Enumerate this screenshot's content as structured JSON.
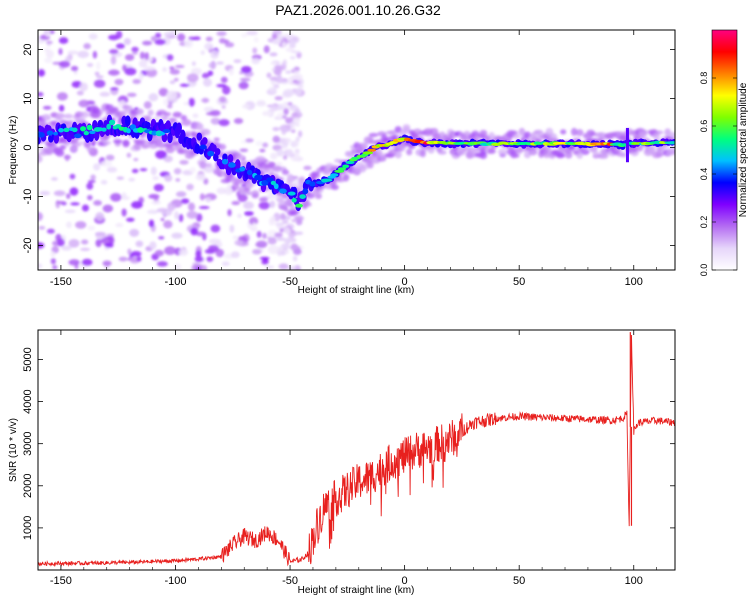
{
  "figure_title": "PAZ1.2026.001.10.26.G32",
  "chart_data": [
    {
      "type": "heatmap",
      "title": "PAZ1.2026.001.10.26.G32",
      "xlabel": "Height of straight line (km)",
      "ylabel": "Frequency (Hz)",
      "xlim": [
        -160,
        118
      ],
      "ylim": [
        -25,
        24
      ],
      "x_ticks": [
        -150,
        -100,
        -50,
        0,
        50,
        100
      ],
      "y_ticks": [
        -20,
        -10,
        0,
        10,
        20
      ],
      "colorbar": {
        "label": "Normalized spectral amplitude",
        "range": [
          0,
          1
        ],
        "ticks": [
          "0.0",
          "0.2",
          "0.4",
          "0.6",
          "0.8"
        ],
        "tick_values": [
          0,
          0.2,
          0.4,
          0.6,
          0.8
        ],
        "stops": [
          "#ffffff",
          "#e6d5fa",
          "#b46cf2",
          "#7f00ff",
          "#0000ff",
          "#00c0ff",
          "#00ff7f",
          "#7fff00",
          "#ffff00",
          "#ff8000",
          "#ff0000",
          "#ff0080"
        ]
      },
      "ridge": {
        "x": [
          -160,
          -150,
          -140,
          -130,
          -120,
          -110,
          -100,
          -90,
          -80,
          -70,
          -60,
          -50,
          -46,
          -42,
          -38,
          -33,
          -28,
          -22,
          -16,
          -12,
          -8,
          -4,
          0,
          4,
          8,
          12,
          20,
          30,
          50,
          70,
          90,
          96,
          98,
          100,
          118
        ],
        "freq": [
          2.5,
          2.8,
          3.2,
          4.5,
          4.2,
          3.6,
          3.0,
          1.0,
          -2.5,
          -5.0,
          -7.0,
          -9.0,
          -11.5,
          -7.5,
          -7.2,
          -6.5,
          -4.5,
          -2.5,
          -1.0,
          0.3,
          0.5,
          1.2,
          1.8,
          1.2,
          1.0,
          1.0,
          0.8,
          0.8,
          0.8,
          0.8,
          0.7,
          0.5,
          1.2,
          0.8,
          1.0
        ],
        "amplitude": [
          0.45,
          0.45,
          0.5,
          0.55,
          0.55,
          0.5,
          0.4,
          0.35,
          0.4,
          0.45,
          0.45,
          0.45,
          0.55,
          0.4,
          0.4,
          0.5,
          0.55,
          0.6,
          0.75,
          0.85,
          0.8,
          0.75,
          0.85,
          0.9,
          0.85,
          0.9,
          0.7,
          0.65,
          0.65,
          0.7,
          0.8,
          0.5,
          0.4,
          0.6,
          0.65
        ]
      }
    },
    {
      "type": "line",
      "xlabel": "Height of straight line (km)",
      "ylabel": "SNR (10 * v/v)",
      "xlim": [
        -160,
        118
      ],
      "ylim": [
        0,
        5700
      ],
      "x_ticks": [
        -150,
        -100,
        -50,
        0,
        50,
        100
      ],
      "y_ticks": [
        1000,
        2000,
        3000,
        4000,
        5000
      ],
      "series": [
        {
          "name": "SNR",
          "color": "#e8201e",
          "x": [
            -160,
            -140,
            -120,
            -100,
            -90,
            -80,
            -75,
            -70,
            -65,
            -60,
            -55,
            -50,
            -45,
            -42,
            -38,
            -35,
            -30,
            -25,
            -20,
            -15,
            -10,
            -5,
            0,
            5,
            10,
            15,
            20,
            25,
            30,
            40,
            50,
            60,
            70,
            80,
            90,
            95,
            97,
            98,
            99,
            100,
            102,
            110,
            118
          ],
          "values": [
            150,
            160,
            180,
            220,
            260,
            320,
            600,
            800,
            700,
            900,
            700,
            200,
            250,
            400,
            1100,
            1500,
            1700,
            1900,
            2100,
            2200,
            2400,
            2600,
            2700,
            2850,
            2900,
            3000,
            3100,
            3300,
            3500,
            3600,
            3650,
            3620,
            3600,
            3580,
            3550,
            3600,
            3700,
            1000,
            5600,
            3300,
            3500,
            3550,
            3500
          ]
        }
      ],
      "spikes": [
        {
          "x": 98.5,
          "value": 5650
        },
        {
          "x": 99.0,
          "value": 1050
        }
      ]
    }
  ]
}
